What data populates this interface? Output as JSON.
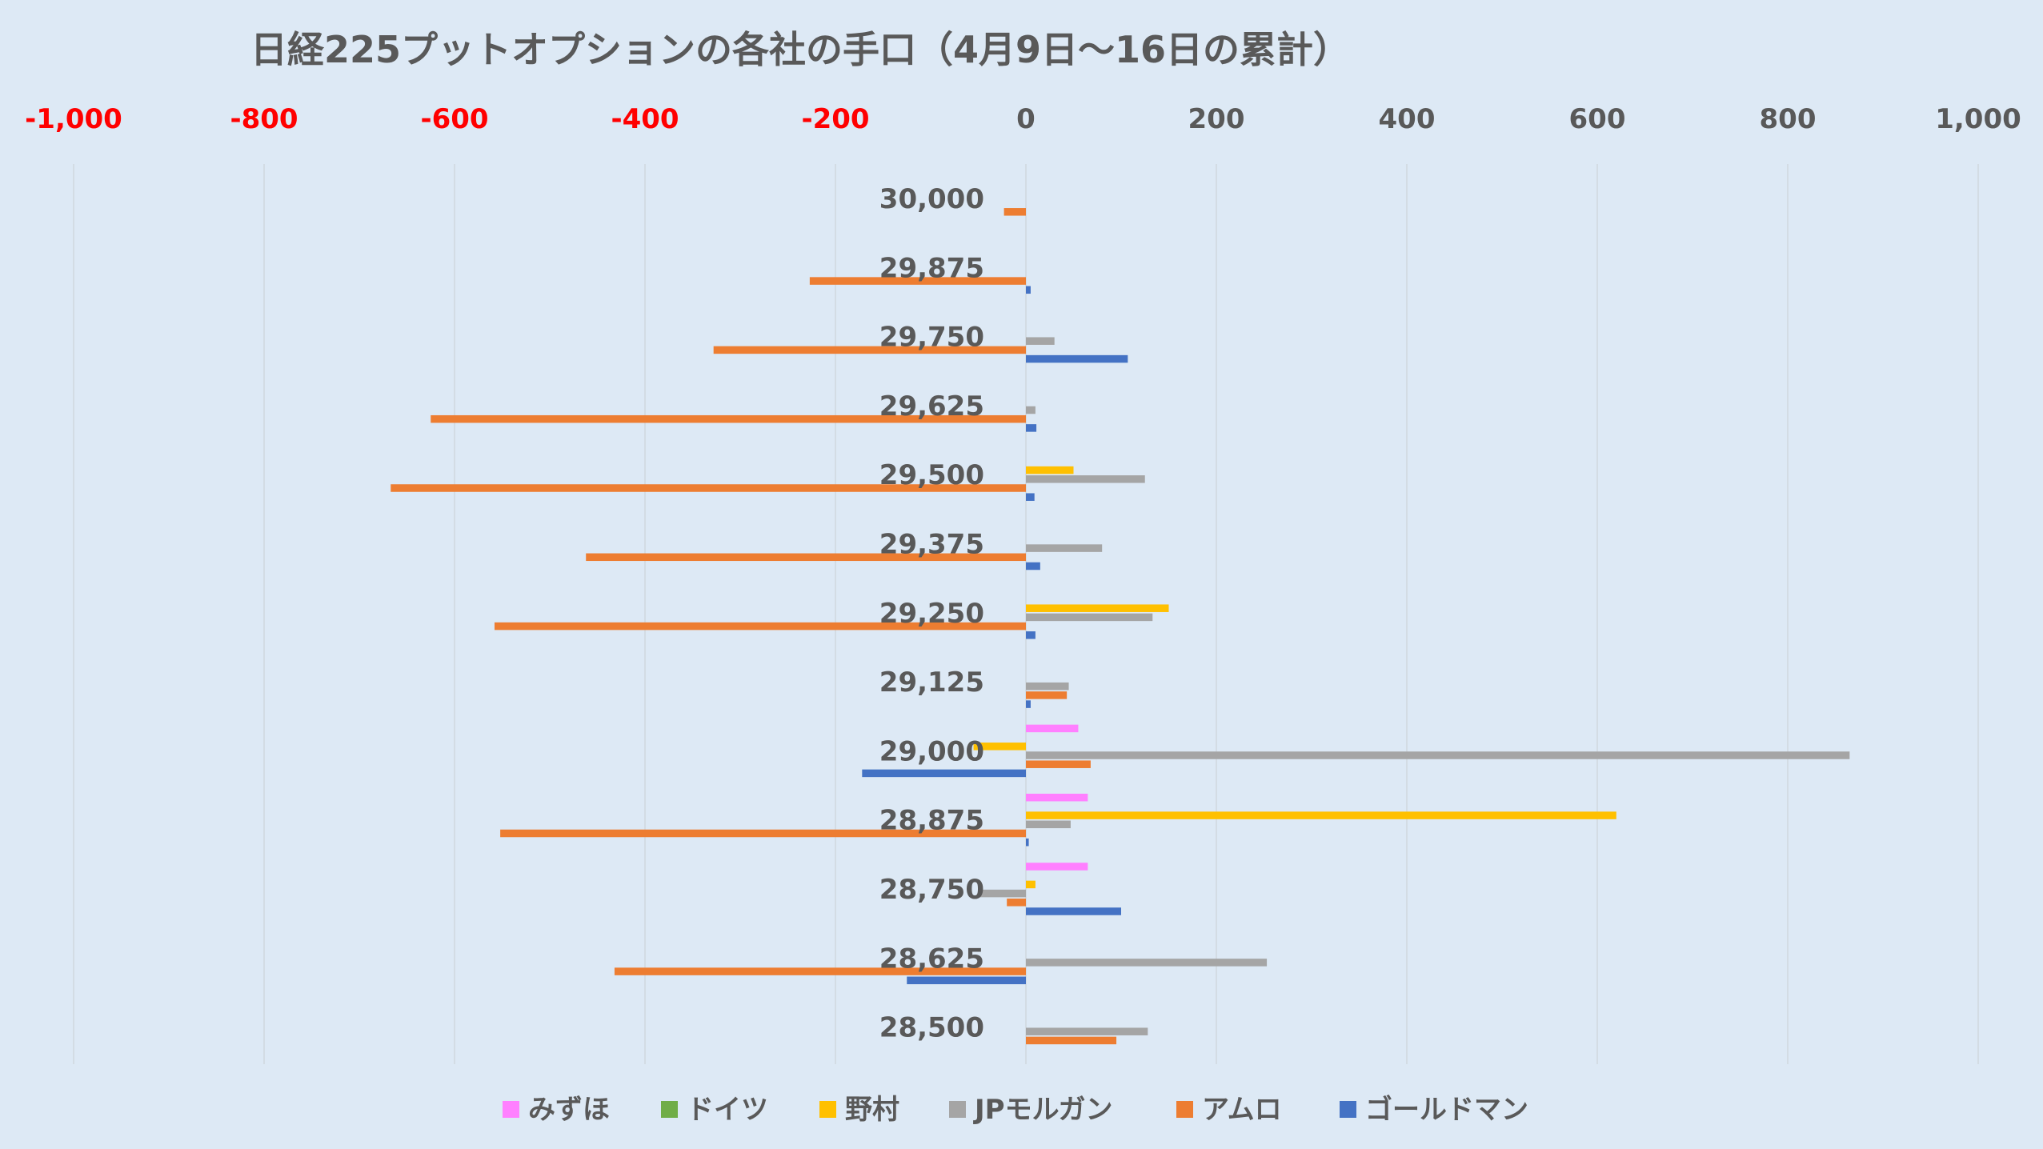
{
  "chart_data": {
    "type": "bar",
    "orientation": "horizontal",
    "title": "日経225プットオプションの各社の手口（4月9日～16日の累計）",
    "xlim": [
      -1000,
      1000
    ],
    "xticks": [
      -1000,
      -800,
      -600,
      -400,
      -200,
      0,
      200,
      400,
      600,
      800,
      1000
    ],
    "xtick_labels": [
      "-1,000",
      "-800",
      "-600",
      "-400",
      "-200",
      "0",
      "200",
      "400",
      "600",
      "800",
      "1,000"
    ],
    "negative_tick_color": "#ff0000",
    "axis_position": "top",
    "grid": "vertical",
    "legend_position": "bottom",
    "categories": [
      "30,000",
      "29,875",
      "29,750",
      "29,625",
      "29,500",
      "29,375",
      "29,250",
      "29,125",
      "29,000",
      "28,875",
      "28,750",
      "28,625",
      "28,500"
    ],
    "series": [
      {
        "name": "みずほ",
        "color": "#ff80ff",
        "values": [
          0,
          0,
          0,
          0,
          0,
          0,
          0,
          0,
          55,
          65,
          65,
          0,
          0
        ]
      },
      {
        "name": "ドイツ",
        "color": "#70ad47",
        "values": [
          0,
          0,
          0,
          0,
          0,
          0,
          0,
          0,
          0,
          0,
          0,
          0,
          0
        ]
      },
      {
        "name": "野村",
        "color": "#ffc000",
        "values": [
          0,
          0,
          0,
          0,
          50,
          0,
          150,
          0,
          -55,
          620,
          10,
          0,
          0
        ]
      },
      {
        "name": "JPモルガン",
        "color": "#a5a5a5",
        "values": [
          0,
          0,
          30,
          10,
          125,
          80,
          133,
          45,
          865,
          47,
          -50,
          253,
          128
        ]
      },
      {
        "name": "アムロ",
        "color": "#ed7d31",
        "values": [
          -23,
          -227,
          -328,
          -625,
          -667,
          -462,
          -558,
          43,
          68,
          -552,
          -20,
          -432,
          95
        ]
      },
      {
        "name": "ゴールドマン",
        "color": "#4472c4",
        "values": [
          0,
          5,
          107,
          11,
          9,
          15,
          10,
          5,
          -172,
          3,
          100,
          -125,
          0
        ]
      }
    ]
  }
}
